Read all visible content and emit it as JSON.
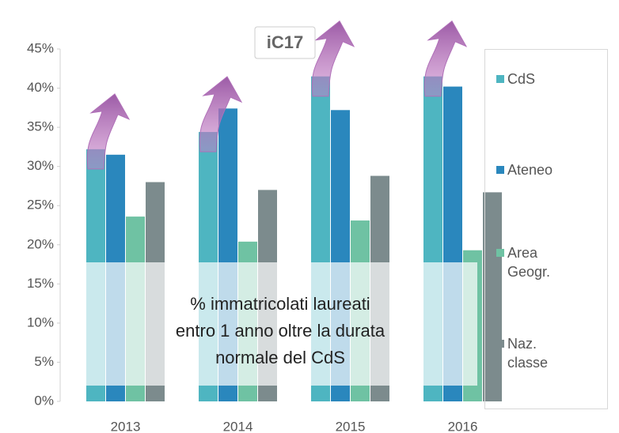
{
  "chart_data": {
    "type": "bar",
    "title": "iC17",
    "annotations": [
      "% immatricolati laureati",
      "entro 1 anno oltre la durata",
      "normale del CdS"
    ],
    "categories": [
      "2013",
      "2014",
      "2015",
      "2016"
    ],
    "series": [
      {
        "name": "CdS",
        "color": "#4eb5c1",
        "values": [
          32.2,
          34.4,
          41.5,
          41.5
        ]
      },
      {
        "name": "Ateneo",
        "color": "#2a87bd",
        "values": [
          31.5,
          37.4,
          37.2,
          40.2
        ]
      },
      {
        "name": "Area Geogr.",
        "color": "#6fc2a3",
        "values": [
          23.6,
          20.4,
          23.1,
          19.3
        ]
      },
      {
        "name": "Naz. classe",
        "color": "#7c8b8d",
        "values": [
          28.0,
          27.0,
          28.8,
          26.7
        ]
      }
    ],
    "ylim": [
      0,
      45
    ],
    "yticks": [
      {
        "value": 0,
        "label": "0%"
      },
      {
        "value": 5,
        "label": "5%"
      },
      {
        "value": 10,
        "label": "10%"
      },
      {
        "value": 15,
        "label": "15%"
      },
      {
        "value": 20,
        "label": "20%"
      },
      {
        "value": 25,
        "label": "25%"
      },
      {
        "value": 30,
        "label": "30%"
      },
      {
        "value": 35,
        "label": "35%"
      },
      {
        "value": 40,
        "label": "40%"
      },
      {
        "value": 45,
        "label": "45%"
      }
    ],
    "grid": false,
    "legend": "right"
  }
}
